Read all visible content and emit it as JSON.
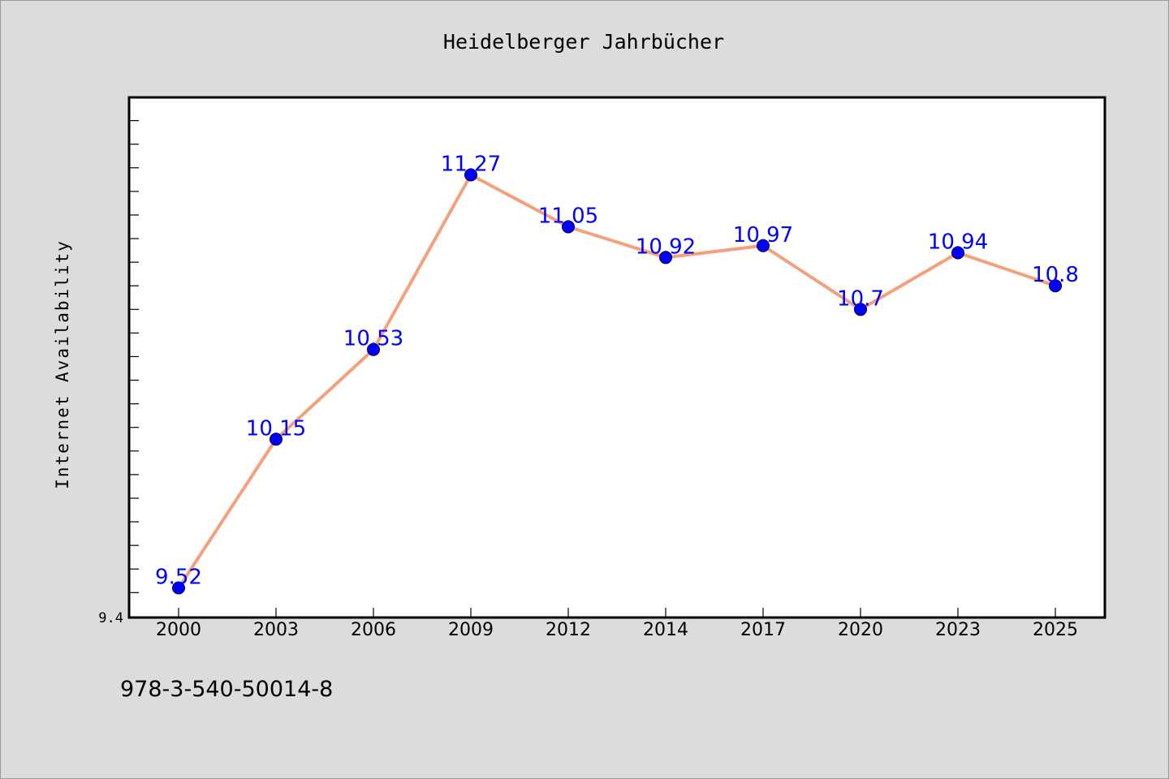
{
  "chart_data": {
    "type": "line",
    "title": "Heidelberger Jahrbücher",
    "xlabel": "",
    "ylabel": "Internet Availability",
    "categories": [
      "2000",
      "2003",
      "2006",
      "2009",
      "2012",
      "2014",
      "2017",
      "2020",
      "2023",
      "2025"
    ],
    "series": [
      {
        "values": [
          9.52,
          10.15,
          10.53,
          11.27,
          11.05,
          10.92,
          10.97,
          10.7,
          10.94,
          10.8
        ]
      }
    ],
    "data_labels": [
      "9.52",
      "10.15",
      "10.53",
      "11.27",
      "11.05",
      "10.92",
      "10.97",
      "10.7",
      "10.94",
      "10.8"
    ],
    "y_tick_labels": [
      "9.4"
    ],
    "ylim": [
      9.4,
      11.6
    ],
    "grid": false,
    "colors": {
      "line": "#f4a07c",
      "marker": "#0000ff",
      "data_label": "#0000ff",
      "plot_background": "#ffffff",
      "page_background": "#dcdcdc"
    }
  },
  "footer": {
    "code": "978-3-540-50014-8"
  }
}
